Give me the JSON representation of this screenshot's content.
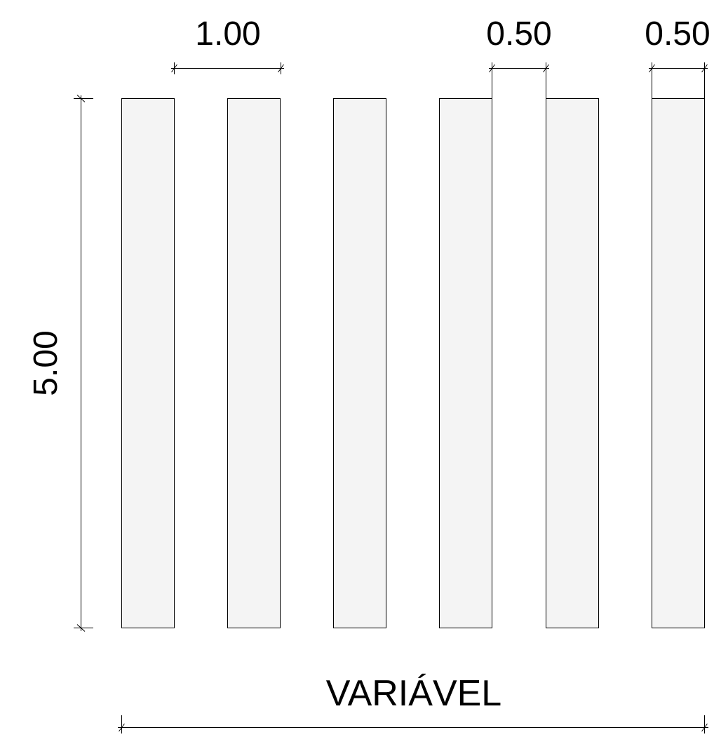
{
  "drawing": {
    "stripe_count": 6,
    "stripe_fill": "#f4f4f4",
    "line_color": "#000000",
    "dimensions": {
      "stripe_width_label": "1.00",
      "gap_label": "0.50",
      "end_stripe_label": "0.50",
      "length_label": "5.00",
      "total_width_label": "VARIÁVEL"
    }
  }
}
